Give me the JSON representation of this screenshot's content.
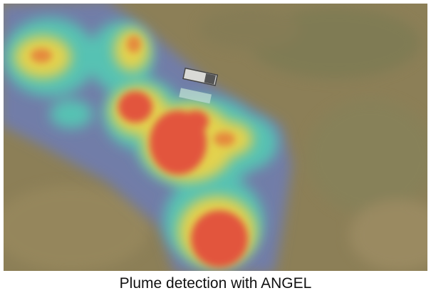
{
  "caption": "Plume detection with ANGEL"
}
